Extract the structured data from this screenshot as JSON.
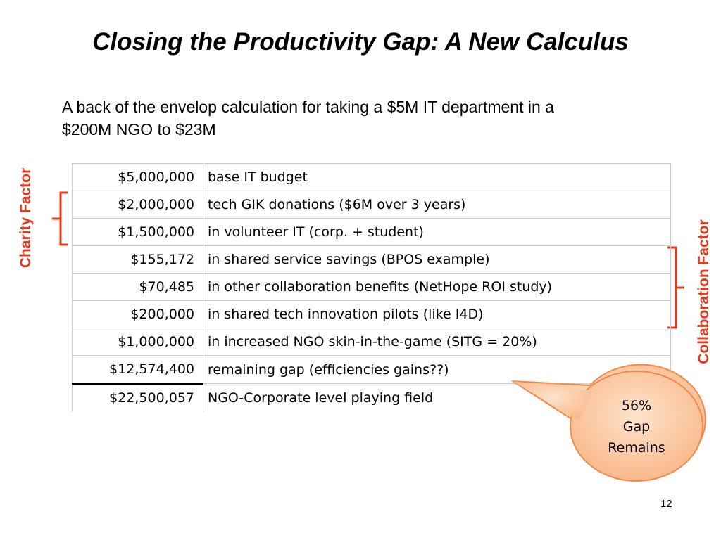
{
  "slide": {
    "title": "Closing the Productivity Gap: A New Calculus",
    "subtitle": "A back of the envelop calculation for taking a $5M IT department in a $200M NGO to $23M",
    "page_number": "12"
  },
  "labels": {
    "charity": "Charity Factor",
    "collaboration": "Collaboration Factor"
  },
  "table": {
    "rows": [
      {
        "amount": "$5,000,000",
        "description": "base IT budget"
      },
      {
        "amount": "$2,000,000",
        "description": "tech GIK donations ($6M over 3 years)"
      },
      {
        "amount": "$1,500,000",
        "description": "in volunteer IT (corp. + student)"
      },
      {
        "amount": "$155,172",
        "description": "in shared service savings (BPOS example)"
      },
      {
        "amount": "$70,485",
        "description": "in other collaboration benefits (NetHope ROI study)"
      },
      {
        "amount": "$200,000",
        "description": "in shared tech innovation pilots (like I4D)"
      },
      {
        "amount": "$1,000,000",
        "description": "in increased NGO skin-in-the-game (SITG = 20%)"
      },
      {
        "amount": "$12,574,400",
        "description": "remaining gap (efficiencies gains??)"
      },
      {
        "amount": "$22,500,057",
        "description": "NGO-Corporate level playing field"
      }
    ]
  },
  "callout": {
    "line1": "56%",
    "line2": "Gap",
    "line3": "Remains"
  },
  "colors": {
    "accent_red": "#e8381a",
    "bubble_fill": "#fbc9a0",
    "bubble_stroke": "#f08a4a"
  }
}
